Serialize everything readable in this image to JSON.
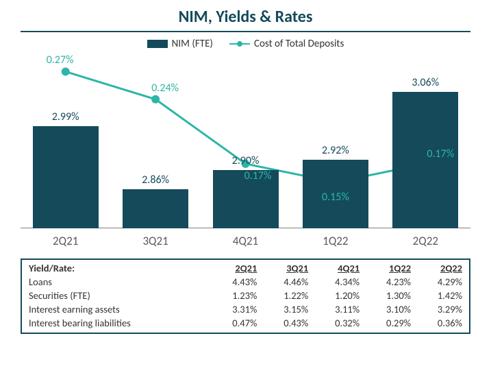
{
  "title": "NIM, Yields & Rates",
  "title_color": "#144a5a",
  "title_fontsize": 24,
  "hr_color": "#144a5a",
  "legend": {
    "bar_label": "NIM (FTE)",
    "line_label": "Cost of Total Deposits"
  },
  "chart": {
    "categories": [
      "2Q21",
      "3Q21",
      "4Q21",
      "1Q22",
      "2Q22"
    ],
    "bars": {
      "values_pct": [
        2.99,
        2.86,
        2.9,
        2.92,
        3.06
      ],
      "labels": [
        "2.99%",
        "2.86%",
        "2.90%",
        "2.92%",
        "3.06%"
      ],
      "color": "#144a5a",
      "label_color": "#144a5a",
      "vmin": 2.78,
      "vmax": 3.12
    },
    "line": {
      "values_pct": [
        0.27,
        0.24,
        0.17,
        0.15,
        0.17
      ],
      "labels": [
        "0.27%",
        "0.24%",
        "0.17%",
        "0.15%",
        "0.17%"
      ],
      "color": "#2cb5a8",
      "label_color": "#2cb5a8",
      "vmin": 0.1,
      "vmax": 0.28,
      "marker_radius": 6,
      "stroke_width": 3
    },
    "axis_label_color": "#595959"
  },
  "table": {
    "border_color": "#144a5a",
    "header_label": "Yield/Rate:",
    "columns": [
      "2Q21",
      "3Q21",
      "4Q21",
      "1Q22",
      "2Q22"
    ],
    "rows": [
      {
        "label": "Loans",
        "cells": [
          "4.43%",
          "4.46%",
          "4.34%",
          "4.23%",
          "4.29%"
        ]
      },
      {
        "label": "Securities (FTE)",
        "cells": [
          "1.23%",
          "1.22%",
          "1.20%",
          "1.30%",
          "1.42%"
        ]
      },
      {
        "label": "Interest earning assets",
        "cells": [
          "3.31%",
          "3.15%",
          "3.11%",
          "3.10%",
          "3.29%"
        ]
      },
      {
        "label": "Interest bearing liabilities",
        "cells": [
          "0.47%",
          "0.43%",
          "0.32%",
          "0.29%",
          "0.36%"
        ]
      }
    ]
  }
}
